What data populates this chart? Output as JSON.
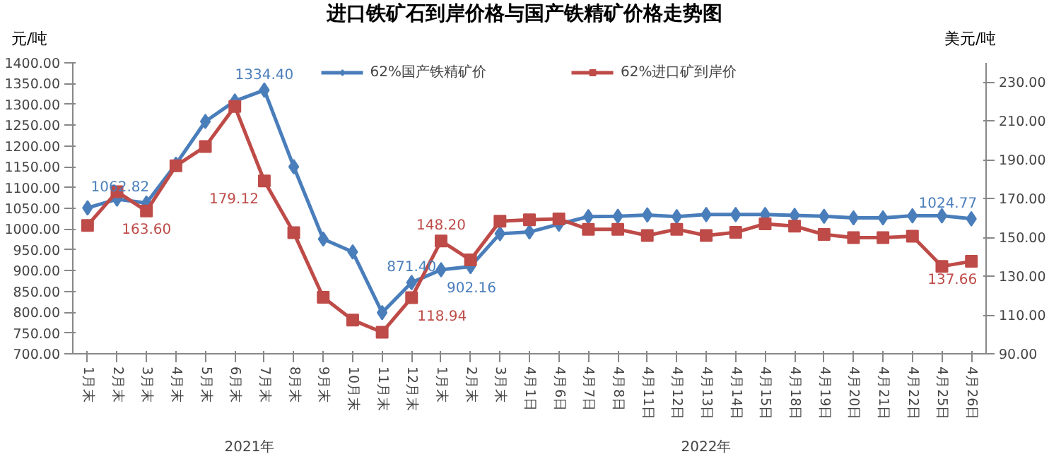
{
  "chart_data": {
    "type": "line",
    "title": "进口铁矿石到岸价格与国产铁精矿价格走势图",
    "ylabel": "元/吨",
    "y2label": "美元/吨",
    "annotations": [
      "2021年",
      "2022年"
    ],
    "categories": [
      "1月末",
      "2月末",
      "3月末",
      "4月末",
      "5月末",
      "6月末",
      "7月末",
      "8月末",
      "9月末",
      "10月末",
      "11月末",
      "12月末",
      "1月末",
      "2月末",
      "3月末",
      "4月1日",
      "4月6日",
      "4月7日",
      "4月8日",
      "4月11日",
      "4月12日",
      "4月13日",
      "4月14日",
      "4月15日",
      "4月18日",
      "4月19日",
      "4月20日",
      "4月21日",
      "4月22日",
      "4月25日",
      "4月26日"
    ],
    "series": [
      {
        "name": "62%国产铁精矿价",
        "color": "#4a7ebb",
        "marker": "diamond",
        "values": [
          1051,
          1072,
          1062.82,
          1156,
          1259,
          1308,
          1334.4,
          1150,
          976,
          945,
          799,
          871.4,
          902.16,
          910,
          989,
          993,
          1012,
          1030,
          1031,
          1034,
          1030,
          1035,
          1035,
          1035,
          1033,
          1031,
          1027,
          1027,
          1032,
          1032,
          1024.77
        ],
        "value_labels": [
          null,
          null,
          "1062.82",
          null,
          null,
          null,
          "1334.40",
          null,
          null,
          null,
          null,
          "871.40",
          "902.16",
          null,
          null,
          null,
          null,
          null,
          null,
          null,
          null,
          null,
          null,
          null,
          null,
          null,
          null,
          null,
          null,
          null,
          "1024.77"
        ]
      },
      {
        "name": "62%进口矿到岸价",
        "color": "#be4b48",
        "marker": "square",
        "axis": "y2",
        "values": [
          156.2,
          173.6,
          163.6,
          186.9,
          196.9,
          217.5,
          179.12,
          152.4,
          119.1,
          107.4,
          101.1,
          118.94,
          148.2,
          138.4,
          158.4,
          159.1,
          159.5,
          154.2,
          154.2,
          151.0,
          154.2,
          151.0,
          152.6,
          157.0,
          155.8,
          151.5,
          149.9,
          149.9,
          150.6,
          135.1,
          137.66
        ],
        "value_labels": [
          null,
          null,
          "163.60",
          null,
          null,
          null,
          "179.12",
          null,
          null,
          null,
          null,
          "118.94",
          "148.20",
          null,
          null,
          null,
          null,
          null,
          null,
          null,
          null,
          null,
          null,
          null,
          null,
          null,
          null,
          null,
          null,
          null,
          "137.66"
        ]
      }
    ],
    "ylim": [
      700,
      1400
    ],
    "yticks": [
      {
        "value": 700,
        "label": "700.00"
      },
      {
        "value": 750,
        "label": "750.00"
      },
      {
        "value": 800,
        "label": "800.00"
      },
      {
        "value": 850,
        "label": "850.00"
      },
      {
        "value": 900,
        "label": "900.00"
      },
      {
        "value": 950,
        "label": "950.00"
      },
      {
        "value": 1000,
        "label": "1000.00"
      },
      {
        "value": 1050,
        "label": "1050.00"
      },
      {
        "value": 1100,
        "label": "1100.00"
      },
      {
        "value": 1150,
        "label": "1150.00"
      },
      {
        "value": 1200,
        "label": "1200.00"
      },
      {
        "value": 1250,
        "label": "1250.00"
      },
      {
        "value": 1300,
        "label": "1300.00"
      },
      {
        "value": 1350,
        "label": "1350.00"
      },
      {
        "value": 1400,
        "label": "1400.00"
      }
    ],
    "y2lim": [
      90,
      240
    ],
    "y2ticks": [
      {
        "value": 90,
        "label": "90.00"
      },
      {
        "value": 110,
        "label": "110.00"
      },
      {
        "value": 130,
        "label": "130.00"
      },
      {
        "value": 150,
        "label": "150.00"
      },
      {
        "value": 170,
        "label": "170.00"
      },
      {
        "value": 190,
        "label": "190.00"
      },
      {
        "value": 210,
        "label": "210.00"
      },
      {
        "value": 230,
        "label": "230.00"
      }
    ],
    "legend": "top",
    "grid": false,
    "line_style": "solid"
  }
}
